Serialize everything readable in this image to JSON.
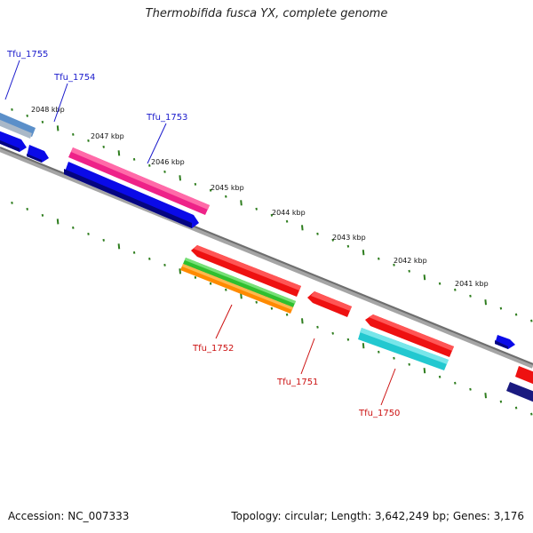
{
  "title": "Thermobifida fusca YX, complete genome",
  "footer": {
    "accession": "Accession: NC_007333",
    "summary": "Topology: circular; Length: 3,642,249 bp; Genes: 3,176"
  },
  "colors": {
    "backbone": "#7a7a7a",
    "ticks": "#2e7d1e",
    "forward_label": "#1a1acc",
    "reverse_label": "#cc1111"
  },
  "kbp_labels": [
    "2048 kbp",
    "2047 kbp",
    "2046 kbp",
    "2045 kbp",
    "2044 kbp",
    "2043 kbp",
    "2042 kbp",
    "2041 kbp"
  ],
  "gene_labels": {
    "forward": [
      "Tfu_1755",
      "Tfu_1754",
      "Tfu_1753"
    ],
    "reverse": [
      "Tfu_1752",
      "Tfu_1751",
      "Tfu_1750"
    ]
  },
  "features": [
    {
      "name": "Tfu_1755",
      "strand": "forward",
      "color": "#5b8fc9"
    },
    {
      "name": "Tfu_1754",
      "strand": "forward",
      "color": "#0a0ae8"
    },
    {
      "name": "Tfu_1753",
      "strand": "forward",
      "color": "#ee2288"
    },
    {
      "name": "Tfu_1752",
      "strand": "reverse",
      "color": "#ee1111"
    },
    {
      "name": "Tfu_1751",
      "strand": "reverse",
      "color": "#ee1111"
    },
    {
      "name": "Tfu_1750",
      "strand": "reverse",
      "color": "#ee1111"
    }
  ]
}
